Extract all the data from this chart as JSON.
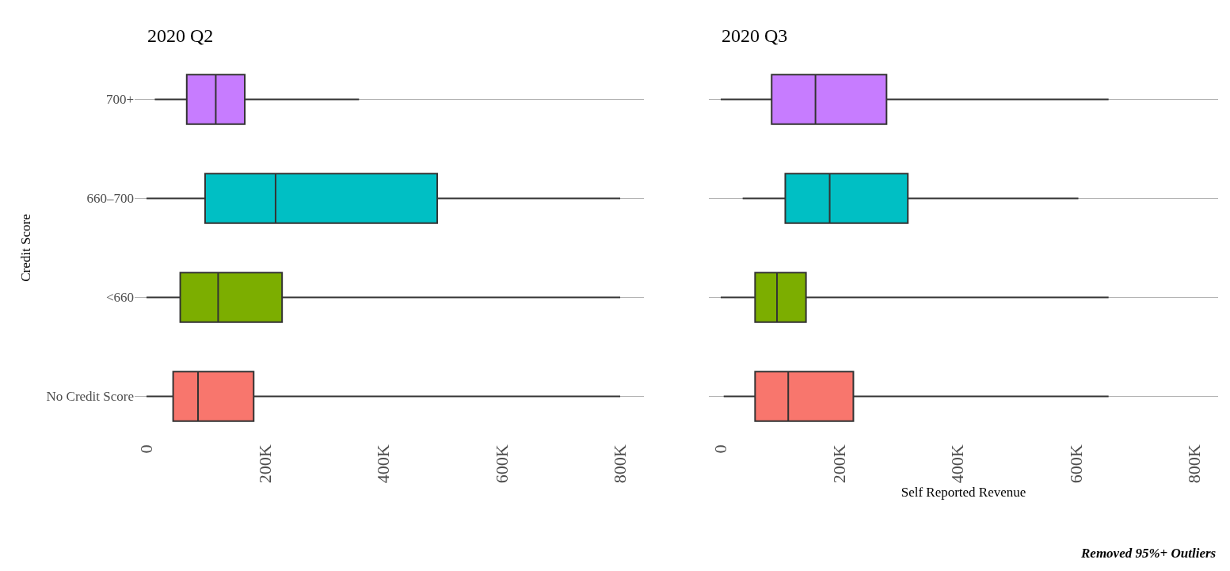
{
  "chart_data": [
    {
      "type": "box",
      "title": "2020 Q2",
      "ylabel": "Credit Score",
      "orientation": "horizontal",
      "categories": [
        "700+",
        "660–700",
        "<660",
        "No Credit Score"
      ],
      "colors": [
        "#c77cff",
        "#00bfc4",
        "#7cae00",
        "#f8766d"
      ],
      "boxes": [
        {
          "low": 14000,
          "q1": 68000,
          "median": 117000,
          "q3": 166000,
          "high": 359000
        },
        {
          "low": 0,
          "q1": 99000,
          "median": 218000,
          "q3": 491000,
          "high": 800000
        },
        {
          "low": 0,
          "q1": 57000,
          "median": 121000,
          "q3": 229000,
          "high": 800000
        },
        {
          "low": 0,
          "q1": 45000,
          "median": 87000,
          "q3": 181000,
          "high": 800000
        }
      ],
      "xlim": [
        -20000,
        840000
      ],
      "xticks": [
        0,
        {
          "value": 200000,
          "label": "200K"
        },
        {
          "value": 400000,
          "label": "400K"
        },
        {
          "value": 600000,
          "label": "600K"
        },
        {
          "value": 800000,
          "label": "800K"
        }
      ],
      "grid": "y"
    },
    {
      "type": "box",
      "title": "2020 Q3",
      "xlabel": "Self Reported Revenue",
      "orientation": "horizontal",
      "categories": [
        null,
        null,
        null,
        null
      ],
      "colors": [
        "#c77cff",
        "#00bfc4",
        "#7cae00",
        "#f8766d"
      ],
      "boxes": [
        {
          "low": 0,
          "q1": 86000,
          "median": 160000,
          "q3": 280000,
          "high": 655000
        },
        {
          "low": 37000,
          "q1": 109000,
          "median": 184000,
          "q3": 316000,
          "high": 604000
        },
        {
          "low": 0,
          "q1": 58000,
          "median": 95000,
          "q3": 144000,
          "high": 655000
        },
        {
          "low": 5000,
          "q1": 58000,
          "median": 114000,
          "q3": 224000,
          "high": 655000
        }
      ],
      "xlim": [
        -20000,
        840000
      ],
      "xticks": [
        0,
        {
          "value": 200000,
          "label": "200K"
        },
        {
          "value": 400000,
          "label": "400K"
        },
        {
          "value": 600000,
          "label": "600K"
        },
        {
          "value": 800000,
          "label": "800K"
        }
      ],
      "grid": "y",
      "tick_labels": "x",
      "annotations": [
        "Removed 95%+ Outliers"
      ]
    }
  ]
}
